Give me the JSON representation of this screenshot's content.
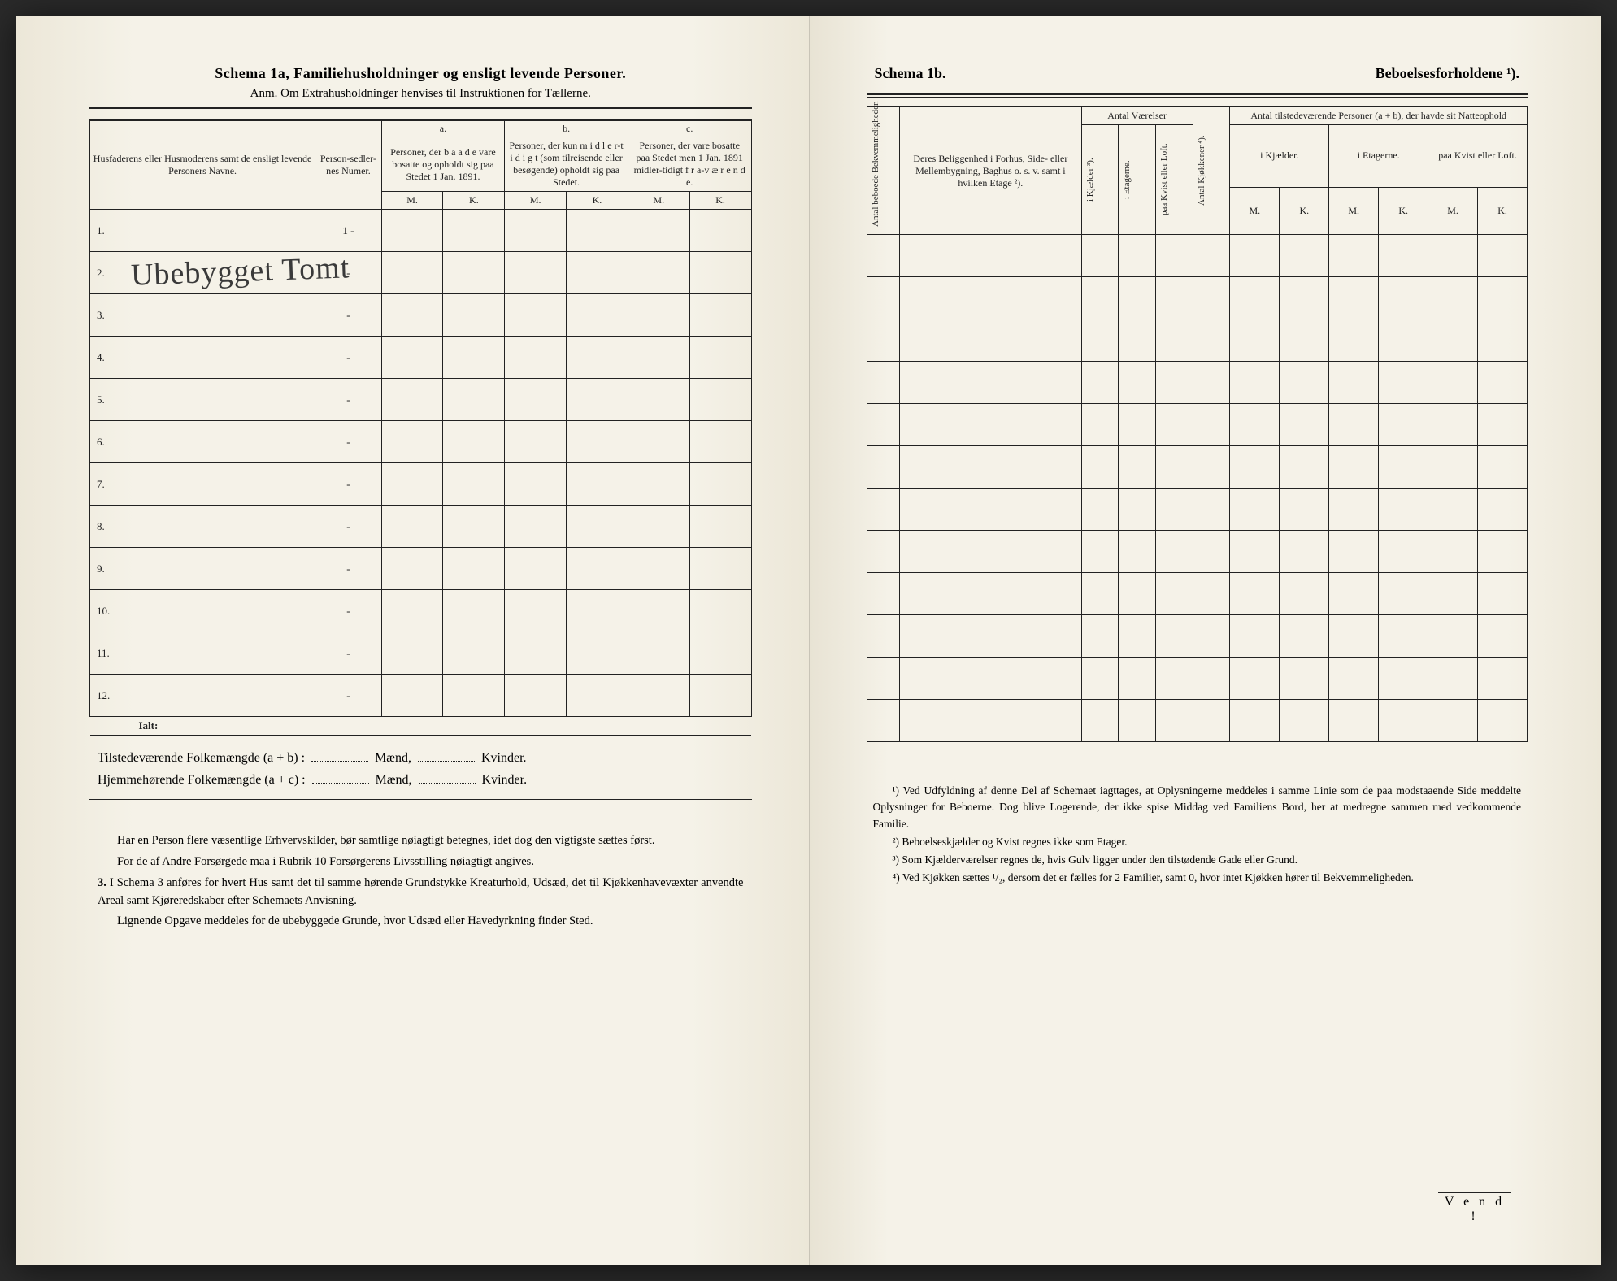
{
  "left": {
    "title": "Schema 1a,  Familiehusholdninger og ensligt levende Personer.",
    "subtitle": "Anm. Om Extrahusholdninger henvises til Instruktionen for Tællerne.",
    "headers": {
      "name": "Husfaderens eller Husmoderens samt de ensligt levende Personers Navne.",
      "num": "Person-sedler-nes Numer.",
      "a_label": "a.",
      "b_label": "b.",
      "c_label": "c.",
      "a_text": "Personer, der b a a d e vare bosatte og opholdt sig paa Stedet 1 Jan. 1891.",
      "b_text": "Personer, der kun m i d l e r-t i d i g t (som tilreisende eller besøgende) opholdt sig paa Stedet.",
      "c_text": "Personer, der vare bosatte paa Stedet men 1 Jan. 1891 midler-tidigt f r a-v æ r e n d e.",
      "m": "M.",
      "k": "K."
    },
    "rows": [
      {
        "n": "1.",
        "num": "1 -",
        "name": ""
      },
      {
        "n": "2.",
        "num": "-",
        "name": "Ubebygget Tomt"
      },
      {
        "n": "3.",
        "num": "-",
        "name": ""
      },
      {
        "n": "4.",
        "num": "-",
        "name": ""
      },
      {
        "n": "5.",
        "num": "-",
        "name": ""
      },
      {
        "n": "6.",
        "num": "-",
        "name": ""
      },
      {
        "n": "7.",
        "num": "-",
        "name": ""
      },
      {
        "n": "8.",
        "num": "-",
        "name": ""
      },
      {
        "n": "9.",
        "num": "-",
        "name": ""
      },
      {
        "n": "10.",
        "num": "-",
        "name": ""
      },
      {
        "n": "11.",
        "num": "-",
        "name": ""
      },
      {
        "n": "12.",
        "num": "-",
        "name": ""
      }
    ],
    "ialt": "Ialt:",
    "totals": {
      "line1a": "Tilstedeværende Folkemængde (a + b) :",
      "line2a": "Hjemmehørende Folkemængde (a + c) :",
      "maend": "Mænd,",
      "kvinder": "Kvinder."
    },
    "footnotes": {
      "p1": "Har en Person flere væsentlige Erhvervskilder, bør samtlige nøiagtigt betegnes, idet dog den vigtigste sættes først.",
      "p2": "For de af Andre Forsørgede maa i Rubrik 10 Forsørgerens Livsstilling nøiagtigt angives.",
      "p3num": "3.",
      "p3": "I Schema 3 anføres for hvert Hus samt det til samme hørende Grundstykke Kreaturhold, Udsæd, det til Kjøkkenhavevæxter anvendte Areal samt Kjøreredskaber efter Schemaets Anvisning.",
      "p4": "Lignende Opgave meddeles for de ubebyggede Grunde, hvor Udsæd eller Havedyrkning finder Sted."
    }
  },
  "right": {
    "title_left": "Schema 1b.",
    "title_right": "Beboelsesforholdene ¹).",
    "headers": {
      "v1": "Antal beboede Bekvemmeligheder.",
      "loc": "Deres Beliggenhed i Forhus, Side- eller Mellembygning, Baghus o. s. v. samt i hvilken Etage ²).",
      "rooms": "Antal Værelser",
      "rooms_sub": {
        "a": "i Kjælder ³).",
        "b": "i Etagerne.",
        "c": "paa Kvist eller Loft."
      },
      "kitchen": "Antal Kjøkkener ⁴).",
      "persons": "Antal tilstedeværende Personer (a + b), der havde sit Natteophold",
      "persons_sub": {
        "a": "i Kjælder.",
        "b": "i Etagerne.",
        "c": "paa Kvist eller Loft."
      },
      "m": "M.",
      "k": "K."
    },
    "row_count": 12,
    "footnotes": {
      "f1": "¹) Ved Udfyldning af denne Del af Schemaet iagttages, at Oplysningerne meddeles i samme Linie som de paa modstaaende Side meddelte Oplysninger for Beboerne. Dog blive Logerende, der ikke spise Middag ved Familiens Bord, her at medregne sammen med vedkommende Familie.",
      "f2": "²) Beboelseskjælder og Kvist regnes ikke som Etager.",
      "f3": "³) Som Kjælderværelser regnes de, hvis Gulv ligger under den tilstødende Gade eller Grund.",
      "f4": "⁴) Ved Kjøkken sættes ¹/₂, dersom det er fælles for 2 Familier, samt 0, hvor intet Kjøkken hører til Bekvemmeligheden."
    },
    "vend": "V e n d !"
  }
}
